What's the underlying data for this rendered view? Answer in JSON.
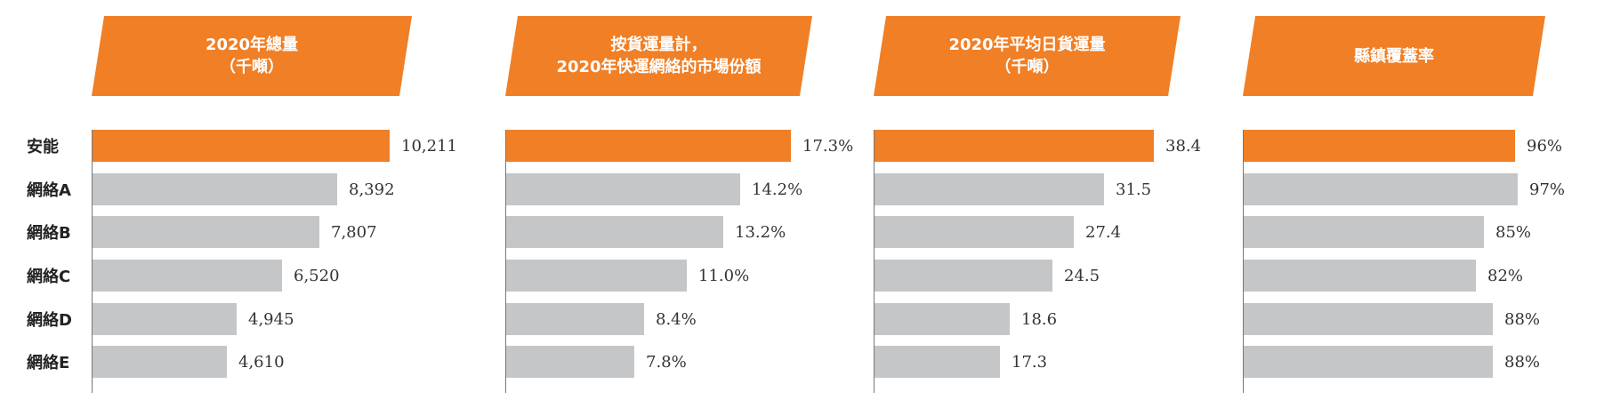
{
  "row_labels": [
    "安能",
    "網絡A",
    "網絡B",
    "網絡C",
    "網絡D",
    "網絡E"
  ],
  "colors": {
    "highlight": "#F07F26",
    "bar": "#C5C6C8",
    "banner": "#F07F26"
  },
  "chart_data": [
    {
      "type": "bar",
      "title_lines": [
        "2020年總量",
        "（千噸）"
      ],
      "categories": [
        "安能",
        "網絡A",
        "網絡B",
        "網絡C",
        "網絡D",
        "網絡E"
      ],
      "values": [
        10211,
        8392,
        7807,
        6520,
        4945,
        4610
      ],
      "value_labels": [
        "10,211",
        "8,392",
        "7,807",
        "6,520",
        "4,945",
        "4,610"
      ],
      "xlim": [
        0,
        10211
      ]
    },
    {
      "type": "bar",
      "title_lines": [
        "按貨運量計，",
        "2020年快運網絡的市場份額"
      ],
      "categories": [
        "安能",
        "網絡A",
        "網絡B",
        "網絡C",
        "網絡D",
        "網絡E"
      ],
      "values": [
        17.3,
        14.2,
        13.2,
        11.0,
        8.4,
        7.8
      ],
      "value_labels": [
        "17.3%",
        "14.2%",
        "13.2%",
        "11.0%",
        "8.4%",
        "7.8%"
      ],
      "xlim": [
        0,
        17.3
      ]
    },
    {
      "type": "bar",
      "title_lines": [
        "2020年平均日貨運量",
        "（千噸）"
      ],
      "categories": [
        "安能",
        "網絡A",
        "網絡B",
        "網絡C",
        "網絡D",
        "網絡E"
      ],
      "values": [
        38.4,
        31.5,
        27.4,
        24.5,
        18.6,
        17.3
      ],
      "value_labels": [
        "38.4",
        "31.5",
        "27.4",
        "24.5",
        "18.6",
        "17.3"
      ],
      "xlim": [
        0,
        38.4
      ]
    },
    {
      "type": "bar",
      "title_lines": [
        "縣鎮覆蓋率"
      ],
      "categories": [
        "安能",
        "網絡A",
        "網絡B",
        "網絡C",
        "網絡D",
        "網絡E"
      ],
      "values": [
        96,
        97,
        85,
        82,
        88,
        88
      ],
      "value_labels": [
        "96%",
        "97%",
        "85%",
        "82%",
        "88%",
        "88%"
      ],
      "xlim": [
        0,
        100
      ]
    }
  ]
}
